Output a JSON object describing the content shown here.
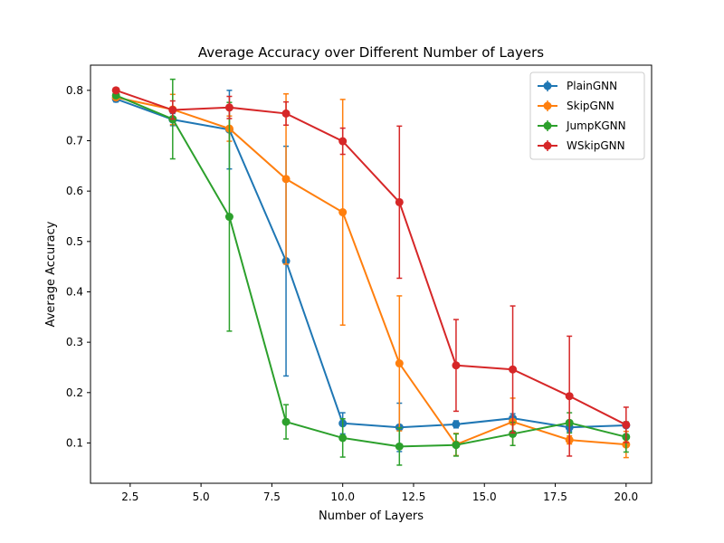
{
  "chart_data": {
    "type": "line",
    "title": "Average Accuracy over Different Number of Layers",
    "xlabel": "Number of Layers",
    "ylabel": "Average Accuracy",
    "x": [
      2,
      4,
      6,
      8,
      10,
      12,
      14,
      16,
      18,
      20
    ],
    "xlim": [
      1.1,
      20.9
    ],
    "ylim": [
      0.02,
      0.85
    ],
    "xticks": [
      2.5,
      5.0,
      7.5,
      10.0,
      12.5,
      15.0,
      17.5,
      20.0
    ],
    "xtick_labels": [
      "2.5",
      "5.0",
      "7.5",
      "10.0",
      "12.5",
      "15.0",
      "17.5",
      "20.0"
    ],
    "yticks": [
      0.1,
      0.2,
      0.3,
      0.4,
      0.5,
      0.6,
      0.7,
      0.8
    ],
    "ytick_labels": [
      "0.1",
      "0.2",
      "0.3",
      "0.4",
      "0.5",
      "0.6",
      "0.7",
      "0.8"
    ],
    "grid": false,
    "legend_position": "top-right",
    "series": [
      {
        "name": "PlainGNN",
        "color": "#1f77b4",
        "values": [
          0.783,
          0.742,
          0.722,
          0.461,
          0.139,
          0.131,
          0.137,
          0.149,
          0.131,
          0.135
        ],
        "errors": [
          0.006,
          0.012,
          0.078,
          0.228,
          0.021,
          0.048,
          0.007,
          0.009,
          0.008,
          0.003
        ]
      },
      {
        "name": "SkipGNN",
        "color": "#ff7f0e",
        "values": [
          0.786,
          0.762,
          0.724,
          0.624,
          0.558,
          0.258,
          0.097,
          0.142,
          0.106,
          0.097
        ],
        "errors": [
          0.004,
          0.03,
          0.025,
          0.169,
          0.224,
          0.134,
          0.022,
          0.047,
          0.008,
          0.026
        ]
      },
      {
        "name": "JumpKGNN",
        "color": "#2ca02c",
        "values": [
          0.79,
          0.743,
          0.549,
          0.142,
          0.11,
          0.093,
          0.096,
          0.118,
          0.14,
          0.112
        ],
        "errors": [
          0.005,
          0.079,
          0.227,
          0.034,
          0.038,
          0.037,
          0.022,
          0.023,
          0.02,
          0.03
        ]
      },
      {
        "name": "WSkipGNN",
        "color": "#d62728",
        "values": [
          0.8,
          0.761,
          0.766,
          0.754,
          0.699,
          0.578,
          0.254,
          0.246,
          0.193,
          0.136
        ],
        "errors": [
          0.004,
          0.018,
          0.022,
          0.023,
          0.026,
          0.151,
          0.091,
          0.126,
          0.119,
          0.035
        ]
      }
    ]
  }
}
